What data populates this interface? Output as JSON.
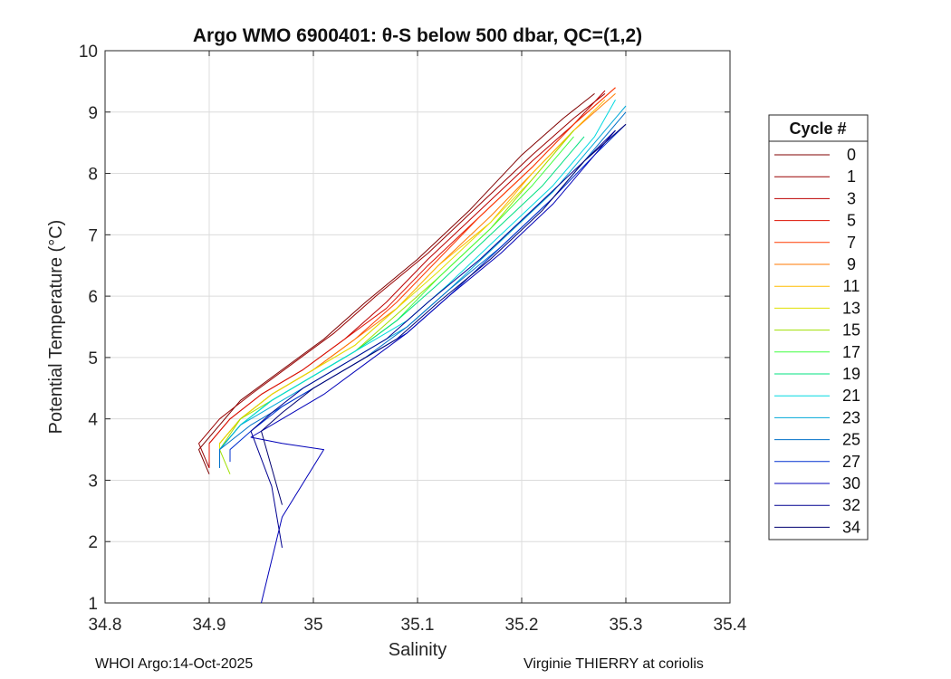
{
  "chart_data": {
    "type": "line",
    "title": "Argo WMO 6900401: θ-S below 500 dbar,  QC=(1,2)",
    "xlabel": "Salinity",
    "ylabel": "Potential Temperature (°C)",
    "xlim": [
      34.8,
      35.4
    ],
    "ylim": [
      1,
      10
    ],
    "xticks": [
      "34.8",
      "34.9",
      "35",
      "35.1",
      "35.2",
      "35.3",
      "35.4"
    ],
    "yticks": [
      "1",
      "2",
      "3",
      "4",
      "5",
      "6",
      "7",
      "8",
      "9",
      "10"
    ],
    "grid": true,
    "legend_title": "Cycle #",
    "legend_position": "right",
    "series": [
      {
        "name": "0",
        "color": "#800000",
        "x": [
          34.9,
          34.89,
          34.91,
          34.93,
          34.97,
          35.01,
          35.05,
          35.1,
          35.15,
          35.2,
          35.24,
          35.27
        ],
        "y": [
          3.1,
          3.5,
          3.9,
          4.3,
          4.8,
          5.3,
          5.9,
          6.6,
          7.4,
          8.3,
          8.9,
          9.3
        ]
      },
      {
        "name": "1",
        "color": "#990000",
        "x": [
          34.9,
          34.89,
          34.91,
          34.94,
          34.98,
          35.02,
          35.06,
          35.11,
          35.16,
          35.21,
          35.25,
          35.28
        ],
        "y": [
          3.2,
          3.6,
          4.0,
          4.4,
          4.9,
          5.4,
          6.0,
          6.7,
          7.5,
          8.3,
          8.9,
          9.3
        ]
      },
      {
        "name": "3",
        "color": "#bb0000",
        "x": [
          34.9,
          34.9,
          34.92,
          34.95,
          34.99,
          35.03,
          35.07,
          35.11,
          35.16,
          35.21,
          35.25,
          35.28
        ],
        "y": [
          3.2,
          3.6,
          4.0,
          4.4,
          4.8,
          5.3,
          5.9,
          6.6,
          7.4,
          8.2,
          8.8,
          9.35
        ]
      },
      {
        "name": "5",
        "color": "#dd1000",
        "x": [
          34.9,
          34.9,
          34.92,
          34.95,
          34.99,
          35.03,
          35.07,
          35.11,
          35.16,
          35.21,
          35.25,
          35.29
        ],
        "y": [
          3.3,
          3.6,
          4.0,
          4.4,
          4.8,
          5.3,
          5.8,
          6.5,
          7.3,
          8.1,
          8.8,
          9.4
        ]
      },
      {
        "name": "7",
        "color": "#ff3a00",
        "x": [
          34.91,
          34.91,
          34.93,
          34.96,
          35.0,
          35.04,
          35.08,
          35.12,
          35.16,
          35.21,
          35.25,
          35.29
        ],
        "y": [
          3.3,
          3.6,
          4.0,
          4.4,
          4.8,
          5.3,
          5.9,
          6.6,
          7.3,
          8.1,
          8.8,
          9.4
        ]
      },
      {
        "name": "9",
        "color": "#ff7a00",
        "x": [
          34.91,
          34.91,
          34.93,
          34.96,
          35.0,
          35.04,
          35.08,
          35.12,
          35.17,
          35.21,
          35.25,
          35.29
        ],
        "y": [
          3.3,
          3.6,
          4.0,
          4.4,
          4.8,
          5.3,
          5.8,
          6.5,
          7.3,
          8.0,
          8.7,
          9.3
        ]
      },
      {
        "name": "11",
        "color": "#ffbb00",
        "x": [
          34.91,
          34.91,
          34.93,
          34.96,
          35.0,
          35.04,
          35.08,
          35.12,
          35.17,
          35.21,
          35.25,
          35.28
        ],
        "y": [
          3.3,
          3.6,
          4.0,
          4.4,
          4.8,
          5.2,
          5.8,
          6.5,
          7.2,
          8.0,
          8.7,
          9.2
        ]
      },
      {
        "name": "13",
        "color": "#e0e000",
        "x": [
          34.91,
          34.91,
          34.93,
          34.96,
          35.0,
          35.04,
          35.08,
          35.12,
          35.17,
          35.21,
          35.25
        ],
        "y": [
          3.2,
          3.6,
          4.0,
          4.4,
          4.8,
          5.2,
          5.8,
          6.4,
          7.2,
          7.9,
          8.7
        ]
      },
      {
        "name": "15",
        "color": "#a0e000",
        "x": [
          34.92,
          34.91,
          34.93,
          34.96,
          35.0,
          35.04,
          35.08,
          35.12,
          35.17,
          35.21,
          35.25
        ],
        "y": [
          3.1,
          3.5,
          4.0,
          4.3,
          4.7,
          5.1,
          5.7,
          6.3,
          7.1,
          7.9,
          8.7
        ]
      },
      {
        "name": "17",
        "color": "#40ff40",
        "x": [
          34.91,
          34.91,
          34.93,
          34.96,
          35.0,
          35.04,
          35.08,
          35.12,
          35.17,
          35.21,
          35.25
        ],
        "y": [
          3.2,
          3.5,
          3.9,
          4.3,
          4.7,
          5.1,
          5.6,
          6.3,
          7.1,
          7.8,
          8.6
        ]
      },
      {
        "name": "19",
        "color": "#00e080",
        "x": [
          34.91,
          34.91,
          34.93,
          34.96,
          35.0,
          35.04,
          35.08,
          35.12,
          35.17,
          35.22,
          35.26
        ],
        "y": [
          3.2,
          3.5,
          3.9,
          4.3,
          4.7,
          5.1,
          5.6,
          6.2,
          7.0,
          7.8,
          8.6
        ]
      },
      {
        "name": "21",
        "color": "#00d8e0",
        "x": [
          34.91,
          34.91,
          34.93,
          34.96,
          35.0,
          35.04,
          35.09,
          35.13,
          35.18,
          35.23,
          35.27,
          35.29
        ],
        "y": [
          3.2,
          3.5,
          3.9,
          4.3,
          4.7,
          5.1,
          5.6,
          6.2,
          7.0,
          7.8,
          8.6,
          9.2
        ]
      },
      {
        "name": "23",
        "color": "#00a8d8",
        "x": [
          34.91,
          34.91,
          34.93,
          34.97,
          35.01,
          35.05,
          35.09,
          35.13,
          35.18,
          35.23,
          35.27,
          35.3
        ],
        "y": [
          3.2,
          3.5,
          3.9,
          4.3,
          4.7,
          5.1,
          5.5,
          6.1,
          6.9,
          7.7,
          8.5,
          9.1
        ]
      },
      {
        "name": "25",
        "color": "#0070c8",
        "x": [
          34.91,
          34.91,
          34.94,
          34.97,
          35.01,
          35.05,
          35.09,
          35.13,
          35.18,
          35.23,
          35.27,
          35.3
        ],
        "y": [
          3.2,
          3.5,
          3.9,
          4.2,
          4.6,
          5.0,
          5.5,
          6.1,
          6.8,
          7.6,
          8.4,
          9.0
        ]
      },
      {
        "name": "27",
        "color": "#0030d0",
        "x": [
          34.92,
          34.92,
          34.94,
          34.97,
          35.01,
          35.05,
          35.09,
          35.13,
          35.18,
          35.23,
          35.27,
          35.3
        ],
        "y": [
          3.3,
          3.5,
          3.8,
          4.2,
          4.6,
          5.0,
          5.4,
          6.0,
          6.8,
          7.6,
          8.3,
          8.8
        ]
      },
      {
        "name": "30",
        "color": "#0000b8",
        "x": [
          34.95,
          34.97,
          35.01,
          34.97,
          34.94,
          34.97,
          35.01,
          35.05,
          35.09,
          35.13,
          35.18,
          35.23,
          35.27,
          35.29
        ],
        "y": [
          1.0,
          2.4,
          3.5,
          3.6,
          3.7,
          4.0,
          4.4,
          4.9,
          5.4,
          6.0,
          6.7,
          7.5,
          8.3,
          8.7
        ]
      },
      {
        "name": "32",
        "color": "#000090",
        "x": [
          34.97,
          34.96,
          34.94,
          34.96,
          34.99,
          35.03,
          35.07,
          35.11,
          35.16,
          35.21,
          35.26,
          35.29
        ],
        "y": [
          1.9,
          2.9,
          3.8,
          4.1,
          4.5,
          4.9,
          5.3,
          5.9,
          6.6,
          7.4,
          8.2,
          8.7
        ]
      },
      {
        "name": "34",
        "color": "#000070",
        "x": [
          34.97,
          34.96,
          34.95,
          34.97,
          35.0,
          35.04,
          35.08,
          35.12,
          35.17,
          35.22,
          35.26,
          35.3
        ],
        "y": [
          2.6,
          3.2,
          3.8,
          4.1,
          4.5,
          4.9,
          5.3,
          5.9,
          6.6,
          7.4,
          8.2,
          8.8
        ]
      }
    ]
  },
  "footer": {
    "left": "WHOI Argo:14-Oct-2025",
    "right": "Virginie THIERRY at coriolis"
  }
}
